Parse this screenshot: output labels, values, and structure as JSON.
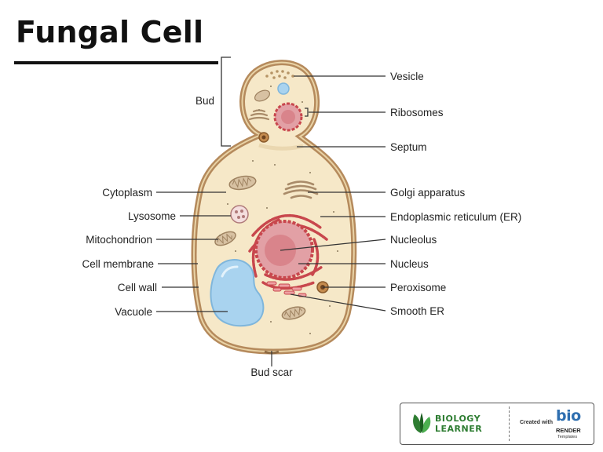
{
  "title": "Fungal Cell",
  "labels": {
    "bud": "Bud",
    "vesicle": "Vesicle",
    "ribosomes": "Ribosomes",
    "septum": "Septum",
    "golgi": "Golgi apparatus",
    "er": "Endoplasmic reticulum (ER)",
    "nucleolus": "Nucleolus",
    "nucleus": "Nucleus",
    "peroxisome": "Peroxisome",
    "smooth_er": "Smooth ER",
    "cytoplasm": "Cytoplasm",
    "lysosome": "Lysosome",
    "mitochondrion": "Mitochondrion",
    "cell_membrane": "Cell membrane",
    "cell_wall": "Cell wall",
    "vacuole": "Vacuole",
    "bud_scar": "Bud scar"
  },
  "footer": {
    "brand_line1": "BIOLOGY",
    "brand_line2": "LEARNER",
    "created_with": "Created with",
    "bio_logo": "bio",
    "bio_render": "RENDER",
    "templates": "Templates"
  },
  "colors": {
    "cell_wall": "#b58a5c",
    "cytoplasm": "#f6e8c8",
    "vacuole": "#a9d3ef",
    "nucleus": "#d9848b",
    "er": "#c8474d",
    "brand_green": "#2e7d32",
    "bio_blue": "#2f6fb0"
  }
}
